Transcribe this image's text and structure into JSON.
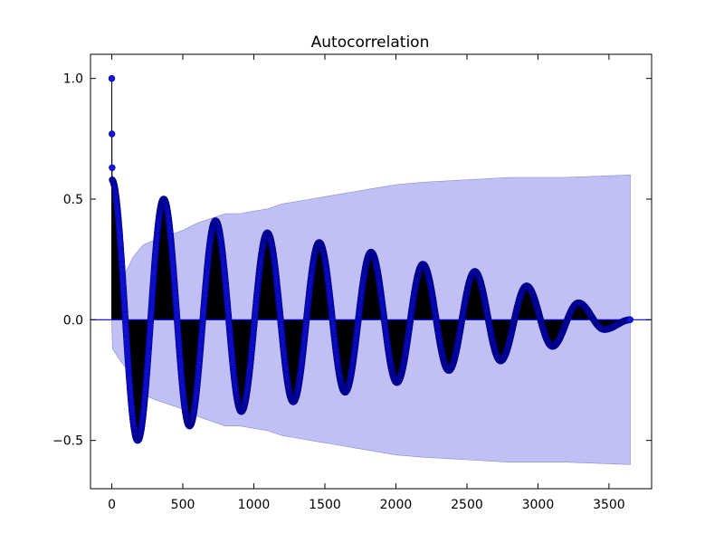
{
  "chart_data": {
    "type": "stem",
    "title": "Autocorrelation",
    "xlabel": "",
    "ylabel": "",
    "xlim": [
      -150,
      3800
    ],
    "ylim": [
      -0.7,
      1.1
    ],
    "x_ticks": [
      0,
      500,
      1000,
      1500,
      2000,
      2500,
      3000,
      3500
    ],
    "x_tick_labels": [
      "0",
      "500",
      "1000",
      "1500",
      "2000",
      "2500",
      "3000",
      "3500"
    ],
    "y_ticks": [
      1.0,
      0.5,
      0.0,
      -0.5
    ],
    "y_tick_labels": [
      "1.0",
      "0.5",
      "0.0",
      "−0.5"
    ],
    "max_lag": 3650,
    "period_lags": 365,
    "acf_initial": [
      {
        "lag": 0,
        "value": 1.0
      },
      {
        "lag": 1,
        "value": 0.77
      },
      {
        "lag": 2,
        "value": 0.63
      },
      {
        "lag": 3,
        "value": 0.58
      }
    ],
    "acf_peaks": [
      {
        "lag": 0,
        "value": 0.58
      },
      {
        "lag": 182,
        "value": -0.5
      },
      {
        "lag": 365,
        "value": 0.5
      },
      {
        "lag": 547,
        "value": -0.44
      },
      {
        "lag": 730,
        "value": 0.41
      },
      {
        "lag": 912,
        "value": -0.38
      },
      {
        "lag": 1095,
        "value": 0.36
      },
      {
        "lag": 1277,
        "value": -0.34
      },
      {
        "lag": 1460,
        "value": 0.32
      },
      {
        "lag": 1642,
        "value": -0.3
      },
      {
        "lag": 1825,
        "value": 0.28
      },
      {
        "lag": 2007,
        "value": -0.26
      },
      {
        "lag": 2190,
        "value": 0.23
      },
      {
        "lag": 2372,
        "value": -0.21
      },
      {
        "lag": 2555,
        "value": 0.2
      },
      {
        "lag": 2737,
        "value": -0.17
      },
      {
        "lag": 2920,
        "value": 0.14
      },
      {
        "lag": 3102,
        "value": -0.11
      },
      {
        "lag": 3285,
        "value": 0.07
      },
      {
        "lag": 3467,
        "value": -0.04
      },
      {
        "lag": 3650,
        "value": 0.0
      }
    ],
    "confidence_band": [
      {
        "lag": 0,
        "value": 0.0
      },
      {
        "lag": 5,
        "value": 0.12
      },
      {
        "lag": 60,
        "value": 0.17
      },
      {
        "lag": 100,
        "value": 0.2
      },
      {
        "lag": 150,
        "value": 0.26
      },
      {
        "lag": 220,
        "value": 0.31
      },
      {
        "lag": 300,
        "value": 0.33
      },
      {
        "lag": 400,
        "value": 0.35
      },
      {
        "lag": 500,
        "value": 0.37
      },
      {
        "lag": 600,
        "value": 0.4
      },
      {
        "lag": 700,
        "value": 0.42
      },
      {
        "lag": 800,
        "value": 0.44
      },
      {
        "lag": 900,
        "value": 0.44
      },
      {
        "lag": 1000,
        "value": 0.45
      },
      {
        "lag": 1100,
        "value": 0.46
      },
      {
        "lag": 1200,
        "value": 0.48
      },
      {
        "lag": 1300,
        "value": 0.49
      },
      {
        "lag": 1400,
        "value": 0.5
      },
      {
        "lag": 1500,
        "value": 0.51
      },
      {
        "lag": 1600,
        "value": 0.52
      },
      {
        "lag": 1700,
        "value": 0.53
      },
      {
        "lag": 1800,
        "value": 0.54
      },
      {
        "lag": 2000,
        "value": 0.56
      },
      {
        "lag": 2200,
        "value": 0.57
      },
      {
        "lag": 2500,
        "value": 0.58
      },
      {
        "lag": 2800,
        "value": 0.59
      },
      {
        "lag": 3200,
        "value": 0.59
      },
      {
        "lag": 3650,
        "value": 0.6
      }
    ],
    "colors": {
      "band_fill": "#c0c0f5",
      "band_edge": "#8a8ad0",
      "stem": "#000000",
      "marker": "#1414e6",
      "marker_edge": "#00008b",
      "zero_line": "#0000ff"
    },
    "grid": false,
    "legend": "none"
  }
}
